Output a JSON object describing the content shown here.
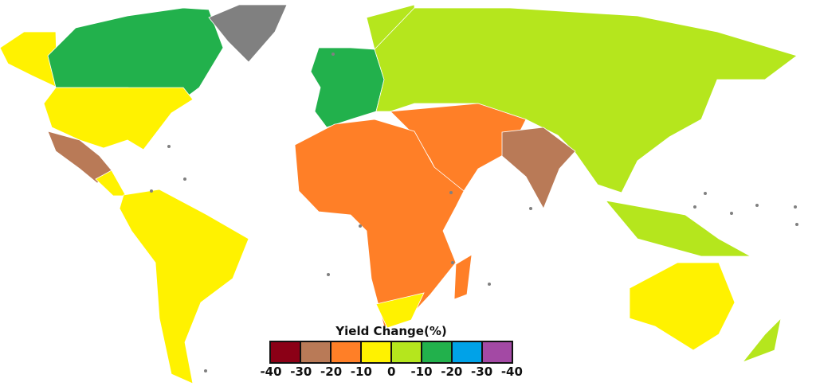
{
  "legend": {
    "title": "Yield Change(%)",
    "colors": [
      "#8b0016",
      "#b97a57",
      "#ff7f27",
      "#fff200",
      "#b5e61d",
      "#22b14c",
      "#00a2e8",
      "#a349a4"
    ],
    "labels": [
      "-40",
      "-30",
      "-20",
      "-10",
      "0",
      "-10",
      "-20",
      "-30",
      "-40"
    ]
  },
  "no_data_color": "#808080"
}
